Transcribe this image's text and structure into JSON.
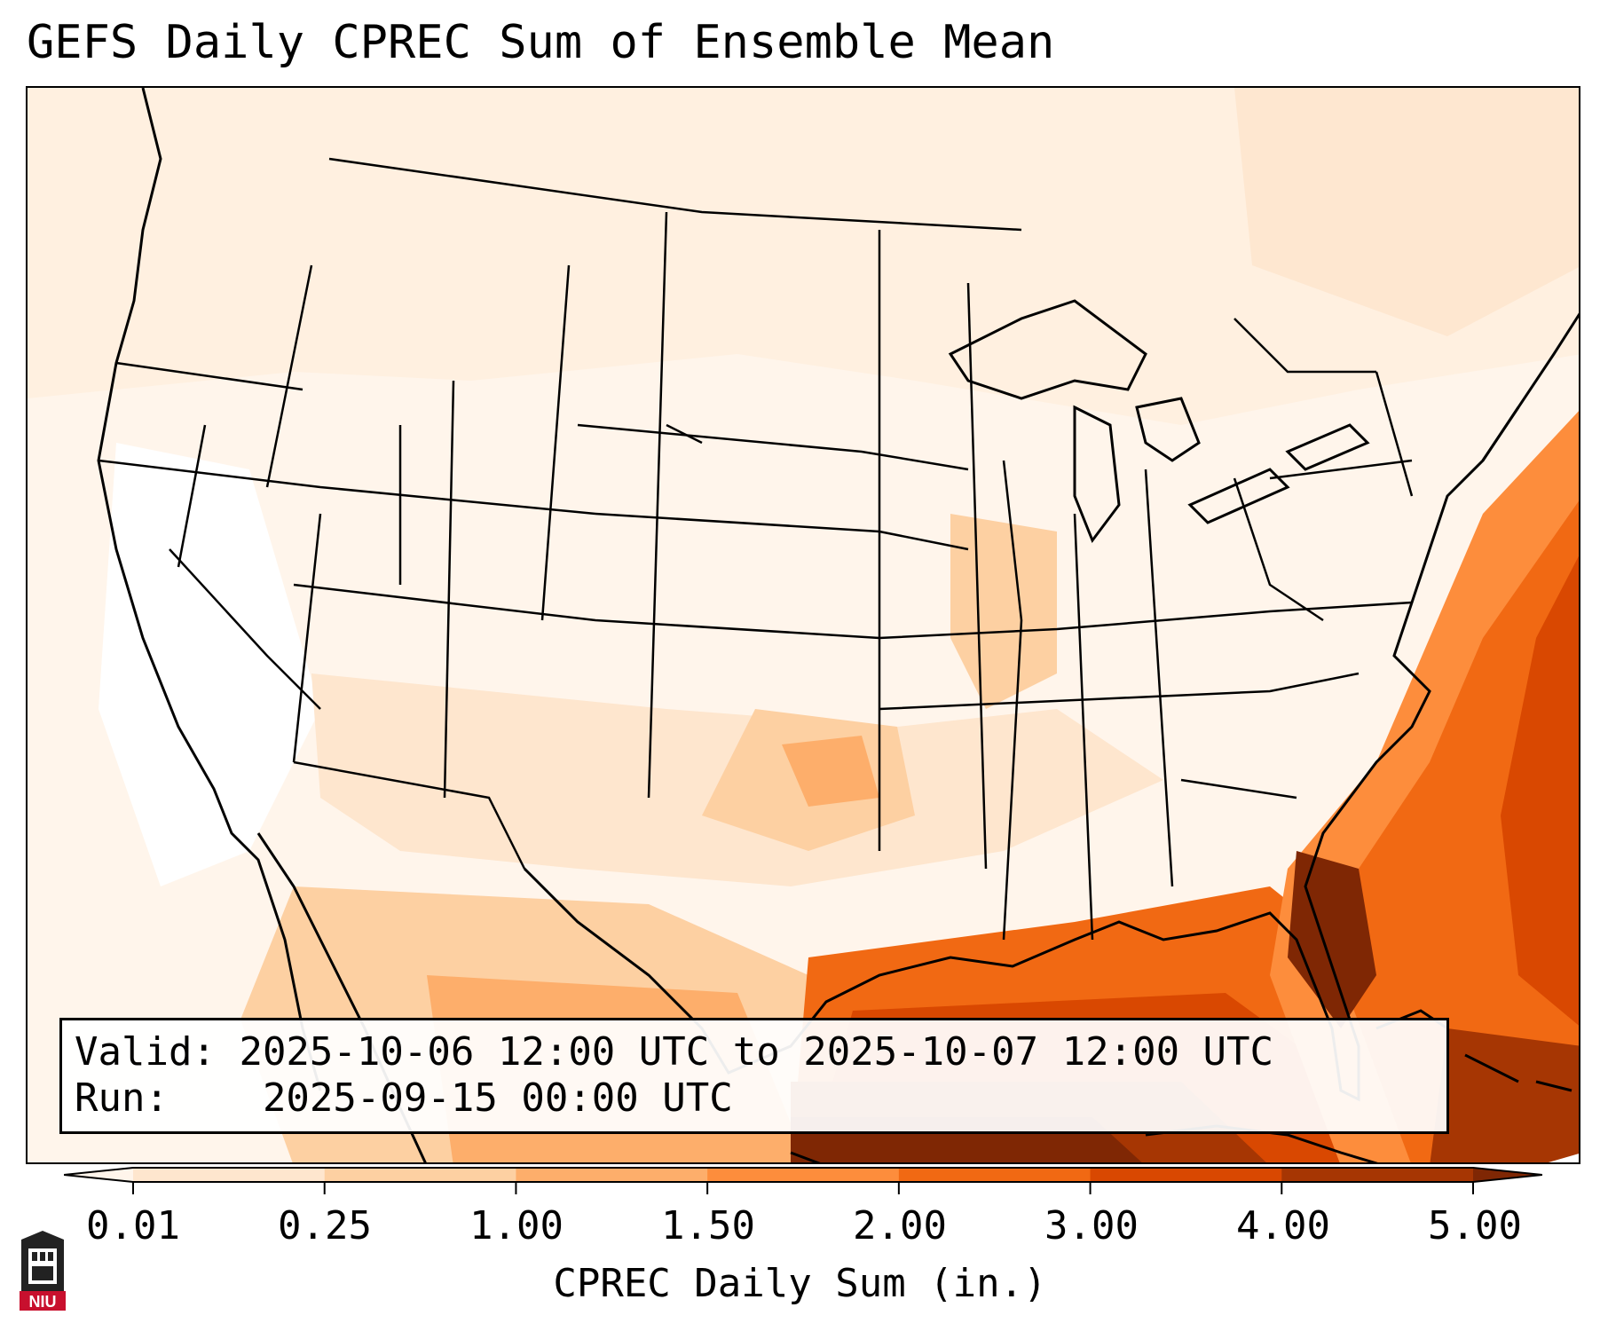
{
  "title": "GEFS Daily CPREC Sum of Ensemble Mean",
  "info": {
    "valid_label": "Valid:",
    "valid_value": "2025-10-06 12:00 UTC to 2025-10-07 12:00 UTC",
    "run_label": "Run:",
    "run_value": "2025-09-15 00:00 UTC"
  },
  "colorbar": {
    "label": "CPREC Daily Sum (in.)",
    "ticks": [
      "0.01",
      "0.25",
      "1.00",
      "1.50",
      "2.00",
      "3.00",
      "4.00",
      "5.00"
    ],
    "colors": [
      "#fff5eb",
      "#fee6ce",
      "#fdd0a2",
      "#fdae6b",
      "#fd8d3c",
      "#f16913",
      "#d94801",
      "#a63603",
      "#7f2704"
    ],
    "extend": "both"
  },
  "logo": {
    "text": "NIU",
    "colors": {
      "red": "#c8102e",
      "dark": "#222222"
    }
  },
  "map": {
    "projection": "lambert-conformal",
    "region": "Contiguous United States, Gulf of Mexico, western Atlantic",
    "shading_levels": {
      "north_central": "0.01-0.25",
      "southern_plains": "0.25-1.50",
      "gulf_coast": "2.00-4.00",
      "gulf_of_mexico": "3.00-5.00",
      "southeast_atlantic_coast": "4.00-5.00+"
    }
  }
}
